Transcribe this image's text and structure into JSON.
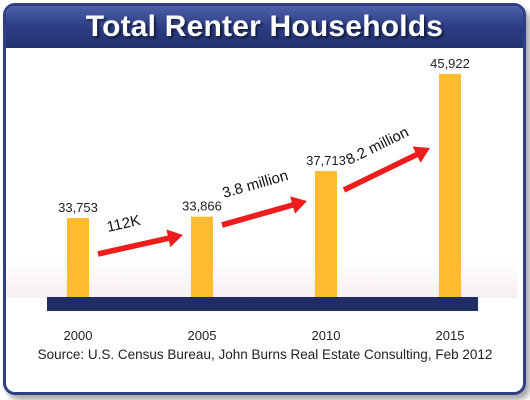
{
  "title": "Total Renter Households",
  "source": "Source: U.S. Census Bureau, John Burns Real Estate Consulting, Feb 2012",
  "colors": {
    "bar": "#fdbb2f",
    "baseline": "#1f2d63",
    "arrow": "#ee1c1c",
    "title_bg": "#2e3f86"
  },
  "chart_data": {
    "type": "bar",
    "title": "Total Renter Households",
    "xlabel": "",
    "ylabel": "",
    "categories": [
      "2000",
      "2005",
      "2010",
      "2015"
    ],
    "values": [
      33753,
      33866,
      37713,
      45922
    ],
    "value_labels": [
      "33,753",
      "33,866",
      "37,713",
      "45,922"
    ],
    "ylim": [
      27000,
      46500
    ],
    "grid": false,
    "legend": "none",
    "annotations": [
      {
        "text": "112K",
        "from": "2000",
        "to": "2005"
      },
      {
        "text": "3.8 million",
        "from": "2005",
        "to": "2010"
      },
      {
        "text": "8.2 million",
        "from": "2010",
        "to": "2015"
      }
    ]
  }
}
